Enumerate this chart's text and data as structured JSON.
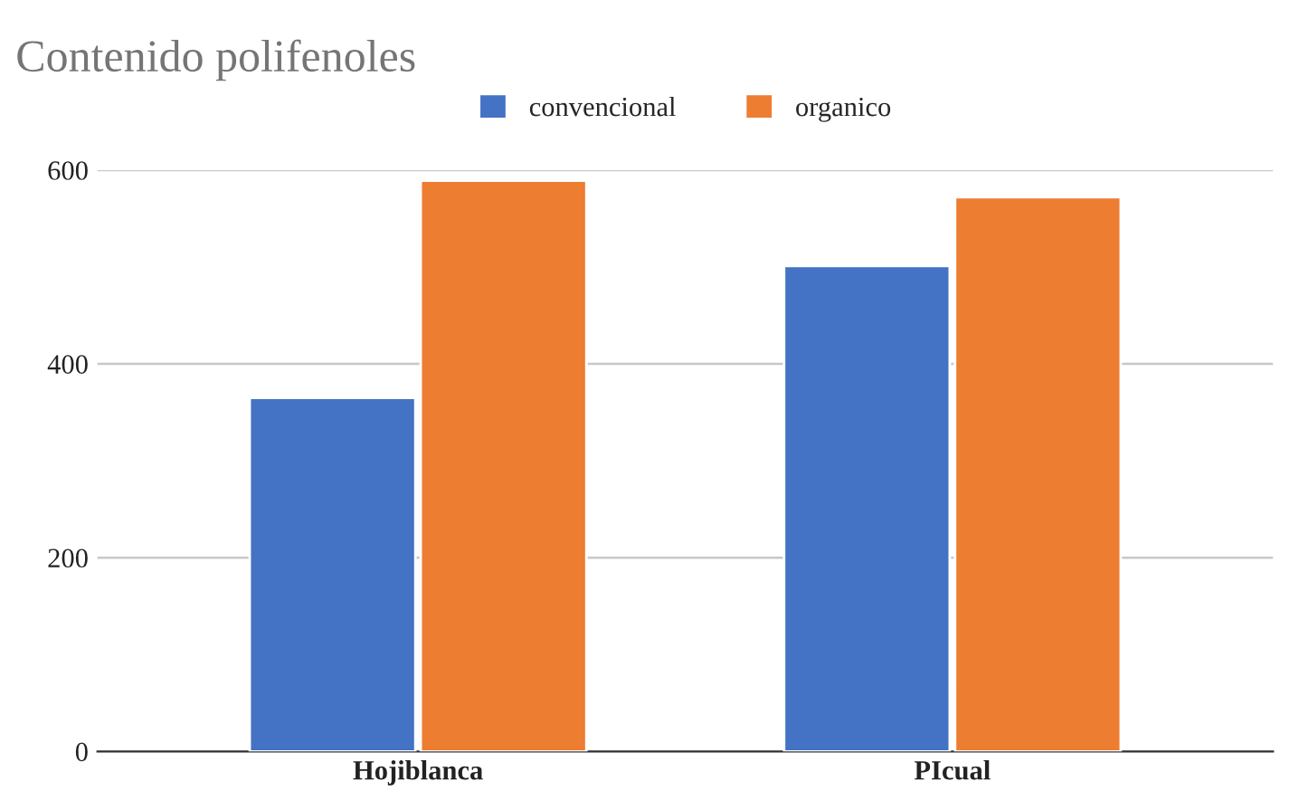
{
  "chart_data": {
    "type": "bar",
    "title": "Contenido polifenoles",
    "categories": [
      "Hojiblanca",
      "PIcual"
    ],
    "series": [
      {
        "name": "convencional",
        "color": "#4472c4",
        "values": [
          365,
          501
        ]
      },
      {
        "name": "organico",
        "color": "#ed7d31",
        "values": [
          589,
          572
        ]
      }
    ],
    "ylim": [
      0,
      600
    ],
    "yticks": [
      0,
      200,
      400,
      600
    ],
    "grid": "y",
    "legend": "top"
  }
}
